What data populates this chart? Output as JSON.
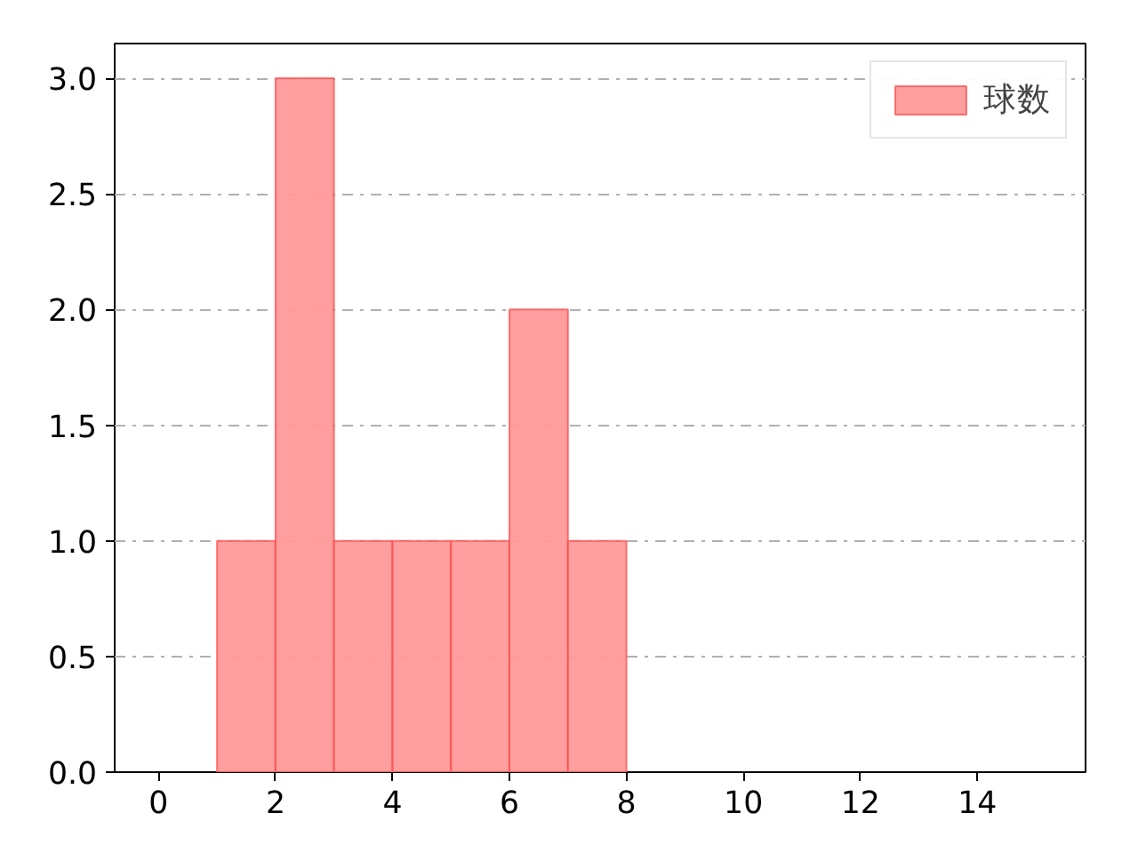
{
  "chart_data": {
    "type": "histogram",
    "bins": [
      1,
      2,
      3,
      4,
      5,
      6,
      7,
      8
    ],
    "series": [
      {
        "name": "球数",
        "color": "#ff9999",
        "values": [
          1,
          3,
          1,
          1,
          1,
          2,
          1
        ]
      }
    ],
    "xlim": [
      -0.75,
      15.85
    ],
    "ylim": [
      0,
      3.15
    ],
    "xticks": [
      0,
      2,
      4,
      6,
      8,
      10,
      12,
      14
    ],
    "yticks": [
      {
        "value": 0,
        "label": "0.0"
      },
      {
        "value": 0.5,
        "label": "0.5"
      },
      {
        "value": 1,
        "label": "1.0"
      },
      {
        "value": 1.5,
        "label": "1.5"
      },
      {
        "value": 2,
        "label": "2.0"
      },
      {
        "value": 2.5,
        "label": "2.5"
      },
      {
        "value": 3,
        "label": "3.0"
      }
    ],
    "grid": "y",
    "legend": "top right"
  }
}
